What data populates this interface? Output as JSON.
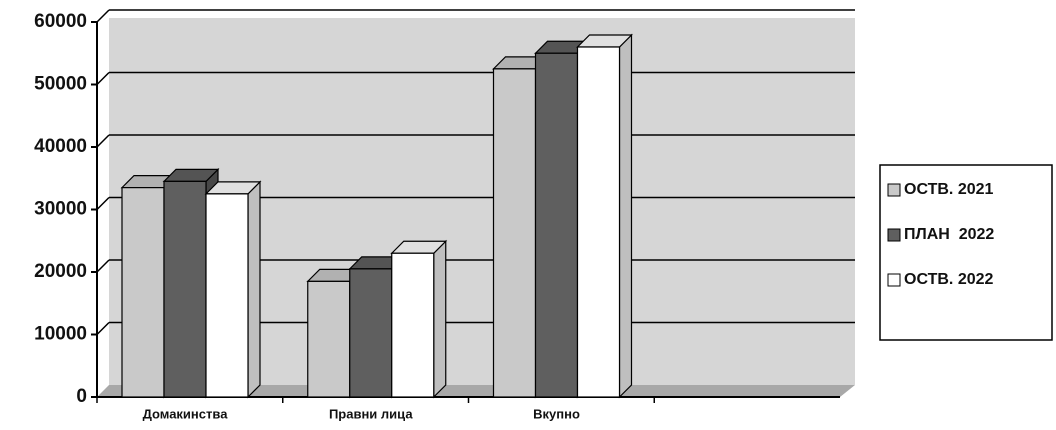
{
  "chart_data": {
    "type": "bar3d",
    "categories": [
      "Домакинства",
      "Правни лица",
      "Вкупно",
      null
    ],
    "series": [
      {
        "name": "ОСТВ. 2021",
        "color": "#c9c9c9",
        "values": [
          33500,
          18500,
          52500,
          null
        ]
      },
      {
        "name": "ПЛАН  2022",
        "color": "#5f5f5f",
        "values": [
          34500,
          20500,
          55000,
          null
        ]
      },
      {
        "name": "ОСТВ. 2022",
        "color": "#ffffff",
        "values": [
          32500,
          23000,
          56000,
          null
        ]
      }
    ],
    "ylim": [
      0,
      60000
    ],
    "yticks": [
      0,
      10000,
      20000,
      30000,
      40000,
      50000,
      60000
    ],
    "grid": true,
    "legend": "right"
  }
}
